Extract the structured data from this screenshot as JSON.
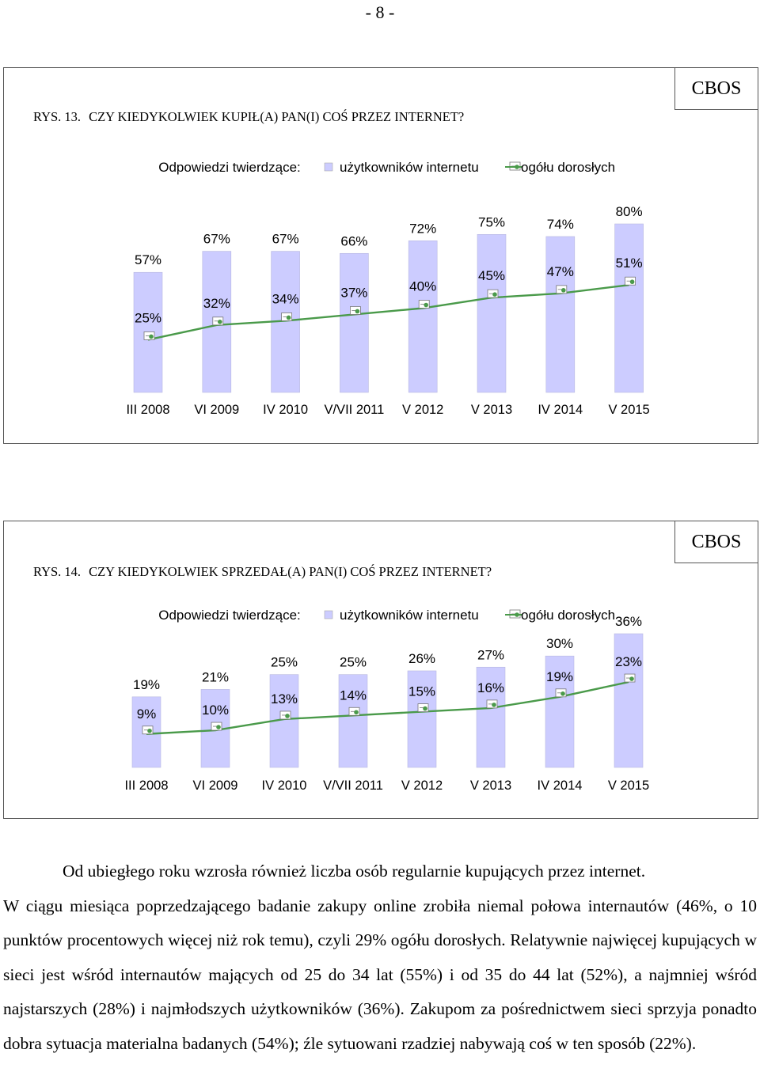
{
  "page_number": "- 8 -",
  "paragraph": {
    "line1": "Od ubiegłego roku wzrosła również liczba osób regularnie kupujących przez internet.",
    "rest": "W ciągu miesiąca poprzedzającego badanie zakupy online zrobiła niemal połowa internautów (46%, o 10 punktów procentowych więcej niż rok temu), czyli 29% ogółu dorosłych. Relatywnie najwięcej kupujących w sieci jest wśród internautów mających od 25 do 34 lat (55%) i od 35 do 44 lat (52%), a najmniej wśród najstarszych (28%) i najmłodszych użytkowników (36%). Zakupom za pośrednictwem sieci sprzyja ponadto dobra sytuacja materialna badanych (54%); źle sytuowani rzadziej nabywają coś w ten sposób (22%)."
  },
  "charts": [
    {
      "label": "RYS. 13.",
      "question": "CZY KIEDYKOLWIEK KUPIŁ(A) PAN(I) COŚ PRZEZ INTERNET?",
      "brand": "CBOS",
      "legend": {
        "prefix": "Odpowiedzi twierdzące:",
        "series1": "użytkowników internetu",
        "series2": "ogółu dorosłych"
      }
    },
    {
      "label": "RYS. 14.",
      "question": "CZY KIEDYKOLWIEK SPRZEDAŁ(A) PAN(I) COŚ PRZEZ INTERNET?",
      "brand": "CBOS",
      "legend": {
        "prefix": "Odpowiedzi twierdzące:",
        "series1": "użytkowników internetu",
        "series2": "ogółu dorosłych"
      }
    }
  ],
  "chart_data": [
    {
      "type": "bar",
      "title": "CZY KIEDYKOLWIEK KUPIŁ(A) PAN(I) COŚ PRZEZ INTERNET?",
      "categories": [
        "III 2008",
        "VI 2009",
        "IV 2010",
        "V/VII 2011",
        "V 2012",
        "V 2013",
        "IV 2014",
        "V 2015"
      ],
      "series": [
        {
          "name": "użytkowników internetu",
          "kind": "bar",
          "color": "#ccccff",
          "values": [
            57,
            67,
            67,
            66,
            72,
            75,
            74,
            80
          ],
          "labels": [
            "57%",
            "67%",
            "67%",
            "66%",
            "72%",
            "75%",
            "74%",
            "80%"
          ]
        },
        {
          "name": "ogółu dorosłych",
          "kind": "line",
          "color": "#4a9a4a",
          "values": [
            25,
            32,
            34,
            37,
            40,
            45,
            47,
            51
          ],
          "labels": [
            "25%",
            "32%",
            "34%",
            "37%",
            "40%",
            "45%",
            "47%",
            "51%"
          ]
        }
      ],
      "ylim": [
        0,
        80
      ],
      "legend": "top"
    },
    {
      "type": "bar",
      "title": "CZY KIEDYKOLWIEK SPRZEDAŁ(A) PAN(I) COŚ PRZEZ INTERNET?",
      "categories": [
        "III 2008",
        "VI 2009",
        "IV 2010",
        "V/VII 2011",
        "V 2012",
        "V 2013",
        "IV 2014",
        "V 2015"
      ],
      "series": [
        {
          "name": "użytkowników internetu",
          "kind": "bar",
          "color": "#ccccff",
          "values": [
            19,
            21,
            25,
            25,
            26,
            27,
            30,
            36
          ],
          "labels": [
            "19%",
            "21%",
            "25%",
            "25%",
            "26%",
            "27%",
            "30%",
            "36%"
          ]
        },
        {
          "name": "ogółu dorosłych",
          "kind": "line",
          "color": "#4a9a4a",
          "values": [
            9,
            10,
            13,
            14,
            15,
            16,
            19,
            23
          ],
          "labels": [
            "9%",
            "10%",
            "13%",
            "14%",
            "15%",
            "16%",
            "19%",
            "23%"
          ]
        }
      ],
      "ylim": [
        0,
        36
      ],
      "legend": "top"
    }
  ]
}
